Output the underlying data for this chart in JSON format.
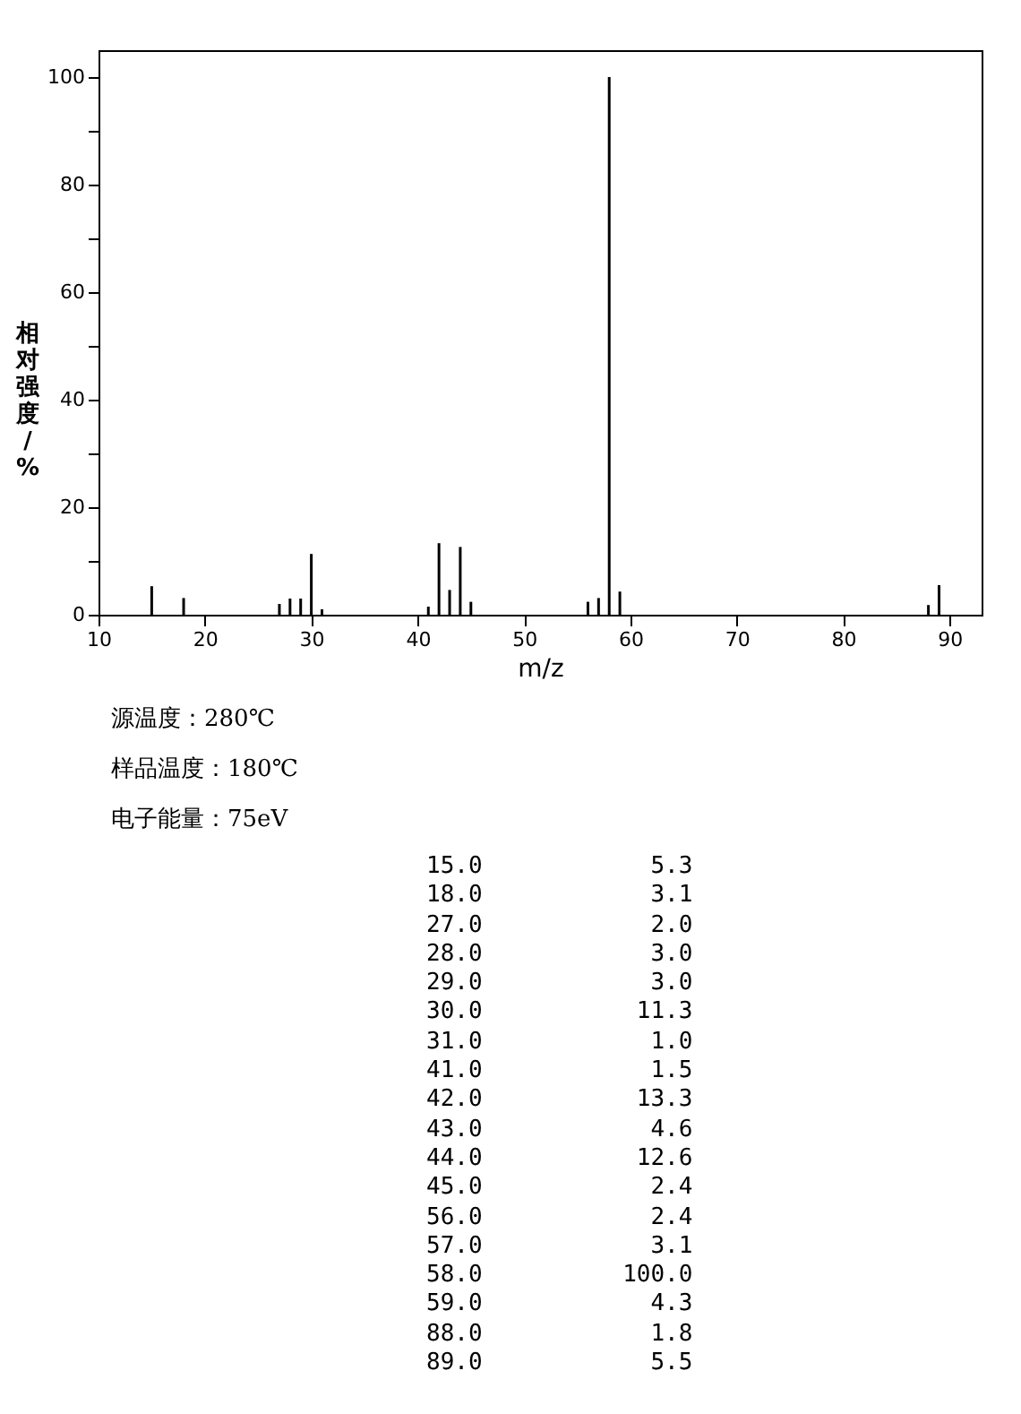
{
  "chart_data": {
    "type": "bar",
    "xlabel": "m/z",
    "ylabel": "相对强度/%",
    "x": [
      15,
      18,
      27,
      28,
      29,
      30,
      31,
      41,
      42,
      43,
      44,
      45,
      56,
      57,
      58,
      59,
      88,
      89
    ],
    "values": [
      5.3,
      3.1,
      2.0,
      3.0,
      3.0,
      11.3,
      1.0,
      1.5,
      13.3,
      4.6,
      12.6,
      2.4,
      2.4,
      3.1,
      100.0,
      4.3,
      1.8,
      5.5
    ],
    "color": "#000000",
    "xlim": [
      10,
      93
    ],
    "ylim": [
      0,
      105
    ],
    "xticks": [
      10,
      20,
      30,
      40,
      50,
      60,
      70,
      80,
      90
    ],
    "yticks": [
      0,
      {
        "value": 10,
        "label": null
      },
      20,
      {
        "value": 30,
        "label": null
      },
      40,
      {
        "value": 50,
        "label": null
      },
      60,
      {
        "value": 70,
        "label": null
      },
      80,
      {
        "value": 90,
        "label": null
      },
      100
    ],
    "grid": false,
    "annotations": [
      "源温度：280℃",
      "样品温度：180℃",
      "电子能量：75eV",
      "15.0            5.3",
      "18.0            3.1",
      "27.0            2.0",
      "28.0            3.0",
      "29.0            3.0",
      "30.0           11.3",
      "31.0            1.0",
      "41.0            1.5",
      "42.0           13.3",
      "43.0            4.6",
      "44.0           12.6",
      "45.0            2.4",
      "56.0            2.4",
      "57.0            3.1",
      "58.0          100.0",
      "59.0            4.3",
      "88.0            1.8",
      "89.0            5.5"
    ]
  }
}
